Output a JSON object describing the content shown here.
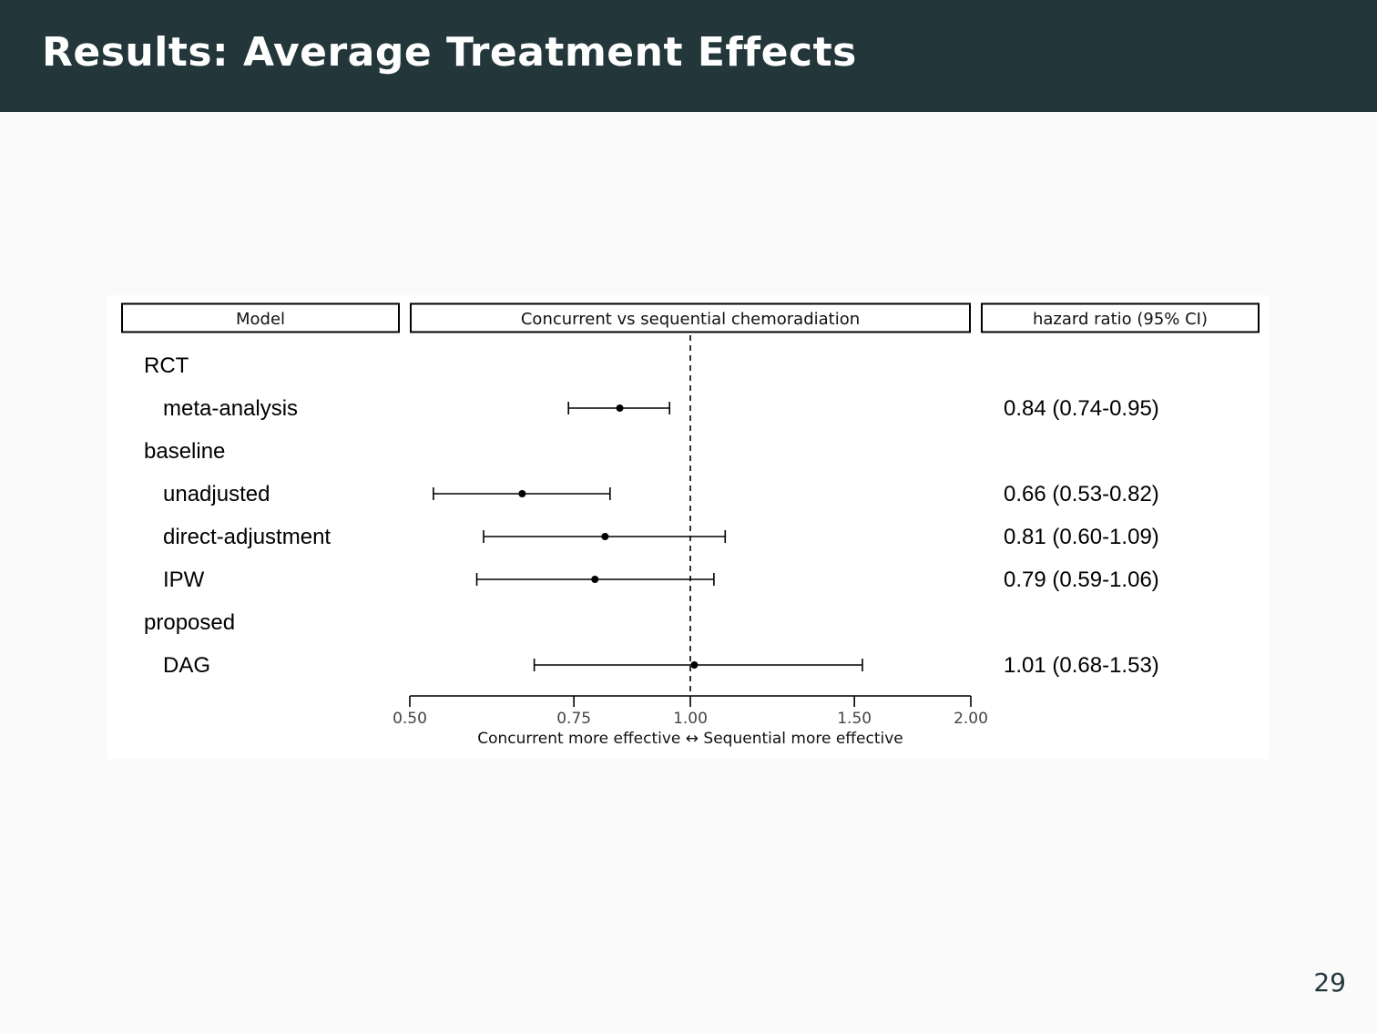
{
  "slide": {
    "title": "Results: Average Treatment Effects",
    "page_number": "29",
    "colors": {
      "header_bg": "#23373b",
      "header_text": "#ffffff",
      "background": "#fafafa"
    }
  },
  "chart_data": {
    "type": "forest",
    "panel_headers": {
      "model": "Model",
      "plot": "Concurrent vs sequential chemoradiation",
      "estimate": "hazard ratio (95% CI)"
    },
    "rows": [
      {
        "label": "RCT",
        "group": true
      },
      {
        "label": "meta-analysis",
        "group": false,
        "hr": 0.84,
        "lo": 0.74,
        "hi": 0.95,
        "text": "0.84 (0.74-0.95)"
      },
      {
        "label": "baseline",
        "group": true
      },
      {
        "label": "unadjusted",
        "group": false,
        "hr": 0.66,
        "lo": 0.53,
        "hi": 0.82,
        "text": "0.66 (0.53-0.82)"
      },
      {
        "label": "direct-adjustment",
        "group": false,
        "hr": 0.81,
        "lo": 0.6,
        "hi": 1.09,
        "text": "0.81 (0.60-1.09)"
      },
      {
        "label": "IPW",
        "group": false,
        "hr": 0.79,
        "lo": 0.59,
        "hi": 1.06,
        "text": "0.79 (0.59-1.06)"
      },
      {
        "label": "proposed",
        "group": true
      },
      {
        "label": "DAG",
        "group": false,
        "hr": 1.01,
        "lo": 0.68,
        "hi": 1.53,
        "text": "1.01 (0.68-1.53)"
      }
    ],
    "x_scale": "log",
    "xlim": [
      0.5,
      2.0
    ],
    "x_ticks": [
      "0.50",
      "0.75",
      "1.00",
      "1.50",
      "2.00"
    ],
    "reference_line": 1.0,
    "xlabel": "Concurrent more effective ↔ Sequential more effective"
  }
}
